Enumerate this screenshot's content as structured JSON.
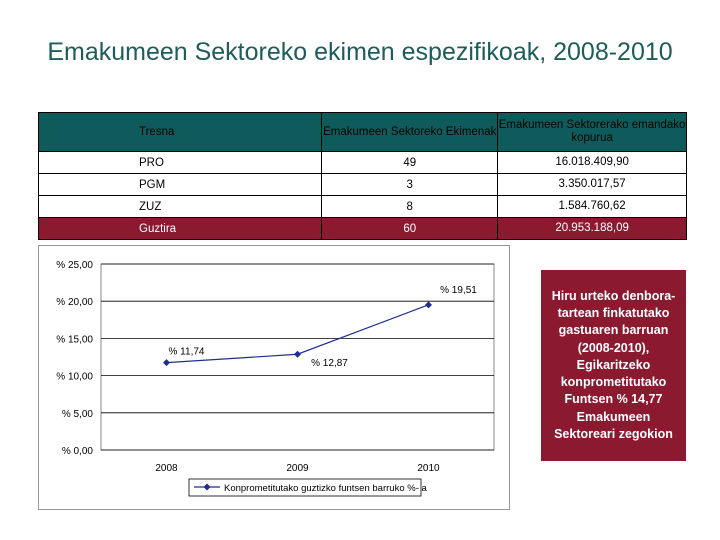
{
  "title": "Emakumeen Sektoreko ekimen espezifikoak, 2008-2010",
  "table": {
    "headers": [
      "Tresna",
      "Emakumeen Sektoreko Ekimenak",
      "Emakumeen Sektorerako emandako kopurua"
    ],
    "rows": [
      [
        "PRO",
        "49",
        "16.018.409,90"
      ],
      [
        "PGM",
        "3",
        "3.350.017,57"
      ],
      [
        "ZUZ",
        "8",
        "1.584.760,62"
      ]
    ],
    "total": [
      "Guztira",
      "60",
      "20.953.188,09"
    ]
  },
  "chart_data": {
    "type": "line",
    "x": [
      "2008",
      "2009",
      "2010"
    ],
    "series": [
      {
        "name": "Konprometitutako guztizko funtsen barruko %- a",
        "values": [
          11.74,
          12.87,
          19.51
        ]
      }
    ],
    "data_labels": [
      "% 11,74",
      "% 12,87",
      "% 19,51"
    ],
    "y_ticks": [
      "% 0,00",
      "% 5,00",
      "% 10,00",
      "% 15,00",
      "% 20,00",
      "% 25,00"
    ],
    "ylim": [
      0,
      25
    ],
    "grid": true,
    "legend": "bottom",
    "line_color": "#1f2f8f"
  },
  "note": "Hiru urteko denbora-tartean finkatutako gastuaren barruan (2008-2010), Egikaritzeko konprometitutako Funtsen % 14,77 Emakumeen Sektoreari zegokion"
}
